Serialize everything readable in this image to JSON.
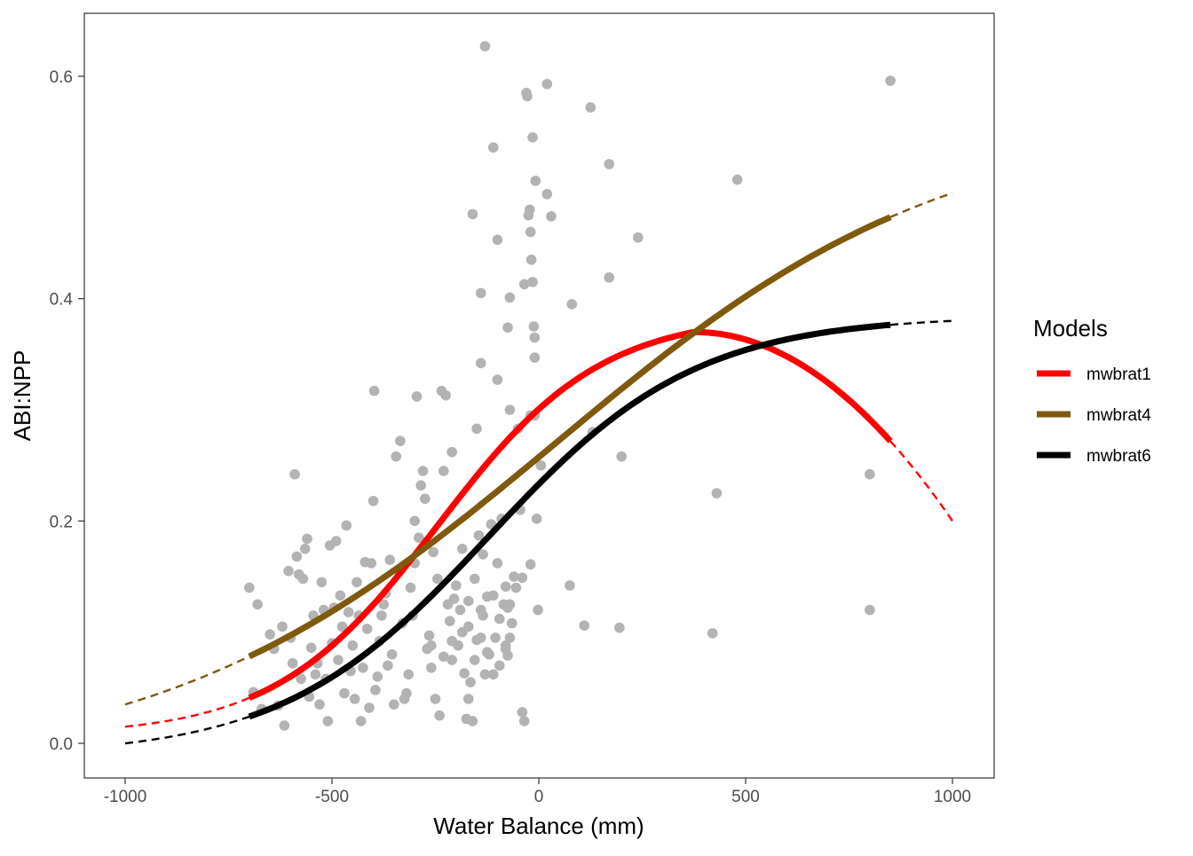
{
  "chart_data": {
    "type": "scatter",
    "xlabel": "Water Balance (mm)",
    "ylabel": "ABI:NPP",
    "xlim": [
      -1000,
      1000
    ],
    "ylim": [
      0.0,
      0.6
    ],
    "x_ticks": [
      "-1000",
      "-500",
      "0",
      "500",
      "1000"
    ],
    "y_ticks": [
      "0.0",
      "0.2",
      "0.4",
      "0.6"
    ],
    "x_tick_values": [
      -1000,
      -500,
      0,
      500,
      1000
    ],
    "y_tick_values": [
      0.0,
      0.2,
      0.4,
      0.6
    ],
    "grid": false,
    "legend": {
      "title": "Models",
      "position": "right",
      "entries": [
        "mwbrat1",
        "mwbrat4",
        "mwbrat6"
      ]
    },
    "points_color": "#b3b3b3",
    "points": [
      [
        -700,
        0.14
      ],
      [
        -680,
        0.125
      ],
      [
        -690,
        0.046
      ],
      [
        -670,
        0.031
      ],
      [
        -650,
        0.098
      ],
      [
        -640,
        0.085
      ],
      [
        -630,
        0.034
      ],
      [
        -620,
        0.105
      ],
      [
        -615,
        0.016
      ],
      [
        -605,
        0.155
      ],
      [
        -600,
        0.095
      ],
      [
        -595,
        0.072
      ],
      [
        -590,
        0.242
      ],
      [
        -585,
        0.168
      ],
      [
        -580,
        0.152
      ],
      [
        -575,
        0.058
      ],
      [
        -570,
        0.148
      ],
      [
        -565,
        0.175
      ],
      [
        -560,
        0.184
      ],
      [
        -555,
        0.042
      ],
      [
        -550,
        0.086
      ],
      [
        -545,
        0.115
      ],
      [
        -540,
        0.062
      ],
      [
        -535,
        0.072
      ],
      [
        -530,
        0.035
      ],
      [
        -525,
        0.145
      ],
      [
        -520,
        0.12
      ],
      [
        -515,
        0.058
      ],
      [
        -510,
        0.02
      ],
      [
        -505,
        0.178
      ],
      [
        -500,
        0.09
      ],
      [
        -495,
        0.122
      ],
      [
        -490,
        0.182
      ],
      [
        -485,
        0.075
      ],
      [
        -480,
        0.133
      ],
      [
        -475,
        0.105
      ],
      [
        -470,
        0.045
      ],
      [
        -465,
        0.196
      ],
      [
        -460,
        0.118
      ],
      [
        -455,
        0.065
      ],
      [
        -450,
        0.088
      ],
      [
        -445,
        0.04
      ],
      [
        -440,
        0.145
      ],
      [
        -435,
        0.115
      ],
      [
        -430,
        0.02
      ],
      [
        -425,
        0.068
      ],
      [
        -420,
        0.163
      ],
      [
        -415,
        0.103
      ],
      [
        -410,
        0.032
      ],
      [
        -405,
        0.162
      ],
      [
        -400,
        0.218
      ],
      [
        -398,
        0.317
      ],
      [
        -395,
        0.048
      ],
      [
        -390,
        0.06
      ],
      [
        -385,
        0.092
      ],
      [
        -380,
        0.115
      ],
      [
        -375,
        0.125
      ],
      [
        -370,
        0.135
      ],
      [
        -365,
        0.07
      ],
      [
        -360,
        0.165
      ],
      [
        -355,
        0.08
      ],
      [
        -350,
        0.035
      ],
      [
        -345,
        0.258
      ],
      [
        -340,
        0.155
      ],
      [
        -335,
        0.272
      ],
      [
        -330,
        0.108
      ],
      [
        -325,
        0.04
      ],
      [
        -320,
        0.045
      ],
      [
        -315,
        0.062
      ],
      [
        -310,
        0.14
      ],
      [
        -305,
        0.115
      ],
      [
        -300,
        0.162
      ],
      [
        -295,
        0.312
      ],
      [
        -290,
        0.185
      ],
      [
        -285,
        0.232
      ],
      [
        -280,
        0.245
      ],
      [
        -275,
        0.22
      ],
      [
        -270,
        0.085
      ],
      [
        -265,
        0.097
      ],
      [
        -260,
        0.068
      ],
      [
        -255,
        0.172
      ],
      [
        -250,
        0.04
      ],
      [
        -245,
        0.148
      ],
      [
        -240,
        0.025
      ],
      [
        -235,
        0.317
      ],
      [
        -230,
        0.245
      ],
      [
        -225,
        0.313
      ],
      [
        -220,
        0.125
      ],
      [
        -215,
        0.11
      ],
      [
        -210,
        0.075
      ],
      [
        -205,
        0.13
      ],
      [
        -200,
        0.142
      ],
      [
        -195,
        0.088
      ],
      [
        -190,
        0.12
      ],
      [
        -185,
        0.1
      ],
      [
        -180,
        0.063
      ],
      [
        -175,
        0.022
      ],
      [
        -170,
        0.04
      ],
      [
        -165,
        0.055
      ],
      [
        -160,
        0.02
      ],
      [
        -155,
        0.075
      ],
      [
        -150,
        0.283
      ],
      [
        -145,
        0.187
      ],
      [
        -140,
        0.095
      ],
      [
        -135,
        0.115
      ],
      [
        -130,
        0.062
      ],
      [
        -125,
        0.132
      ],
      [
        -120,
        0.08
      ],
      [
        -115,
        0.197
      ],
      [
        -110,
        0.133
      ],
      [
        -105,
        0.095
      ],
      [
        -100,
        0.162
      ],
      [
        -95,
        0.112
      ],
      [
        -90,
        0.202
      ],
      [
        -85,
        0.125
      ],
      [
        -80,
        0.088
      ],
      [
        -75,
        0.122
      ],
      [
        -70,
        0.095
      ],
      [
        -65,
        0.108
      ],
      [
        -60,
        0.15
      ],
      [
        -55,
        0.14
      ],
      [
        -50,
        0.283
      ],
      [
        -45,
        0.21
      ],
      [
        -40,
        0.028
      ],
      [
        -35,
        0.02
      ],
      [
        -30,
        0.585
      ],
      [
        -28,
        0.582
      ],
      [
        -25,
        0.475
      ],
      [
        -22,
        0.48
      ],
      [
        -20,
        0.46
      ],
      [
        -18,
        0.435
      ],
      [
        -15,
        0.415
      ],
      [
        -12,
        0.375
      ],
      [
        -10,
        0.347
      ],
      [
        -8,
        0.506
      ],
      [
        -5,
        0.202
      ],
      [
        -2,
        0.12
      ],
      [
        -300,
        0.2
      ],
      [
        -260,
        0.088
      ],
      [
        -230,
        0.078
      ],
      [
        -210,
        0.092
      ],
      [
        -185,
        0.175
      ],
      [
        -170,
        0.128
      ],
      [
        -155,
        0.148
      ],
      [
        -140,
        0.12
      ],
      [
        -125,
        0.082
      ],
      [
        -110,
        0.062
      ],
      [
        -95,
        0.07
      ],
      [
        -80,
        0.085
      ]
    ],
    "points_sparse": [
      [
        -130,
        0.627
      ],
      [
        20,
        0.593
      ],
      [
        125,
        0.572
      ],
      [
        850,
        0.596
      ],
      [
        -15,
        0.545
      ],
      [
        -110,
        0.536
      ],
      [
        170,
        0.521
      ],
      [
        480,
        0.507
      ],
      [
        -160,
        0.476
      ],
      [
        30,
        0.474
      ],
      [
        -100,
        0.453
      ],
      [
        240,
        0.455
      ],
      [
        20,
        0.494
      ],
      [
        -35,
        0.413
      ],
      [
        -140,
        0.405
      ],
      [
        -70,
        0.401
      ],
      [
        170,
        0.419
      ],
      [
        80,
        0.395
      ],
      [
        -75,
        0.374
      ],
      [
        -10,
        0.365
      ],
      [
        -140,
        0.342
      ],
      [
        -100,
        0.327
      ],
      [
        -70,
        0.3
      ],
      [
        -20,
        0.295
      ],
      [
        -10,
        0.295
      ],
      [
        5,
        0.25
      ],
      [
        130,
        0.28
      ],
      [
        200,
        0.258
      ],
      [
        430,
        0.225
      ],
      [
        800,
        0.242
      ],
      [
        -210,
        0.262
      ],
      [
        -80,
        0.141
      ],
      [
        -70,
        0.125
      ],
      [
        -20,
        0.161
      ],
      [
        -40,
        0.149
      ],
      [
        -75,
        0.079
      ],
      [
        75,
        0.142
      ],
      [
        110,
        0.106
      ],
      [
        195,
        0.104
      ],
      [
        420,
        0.099
      ],
      [
        800,
        0.12
      ],
      [
        -135,
        0.17
      ],
      [
        -150,
        0.093
      ],
      [
        -170,
        0.105
      ]
    ],
    "series": [
      {
        "name": "mwbrat1",
        "color": "#ff0000",
        "model": "rat1",
        "x_fit": [
          -700,
          850
        ],
        "x_extrap": [
          -1000,
          1000
        ]
      },
      {
        "name": "mwbrat4",
        "color": "#7f5a0e",
        "model": "rat4",
        "x_fit": [
          -700,
          850
        ],
        "x_extrap": [
          -1000,
          1000
        ]
      },
      {
        "name": "mwbrat6",
        "color": "#000000",
        "model": "rat6",
        "x_fit": [
          -700,
          850
        ],
        "x_extrap": [
          -1000,
          1000
        ]
      }
    ]
  }
}
